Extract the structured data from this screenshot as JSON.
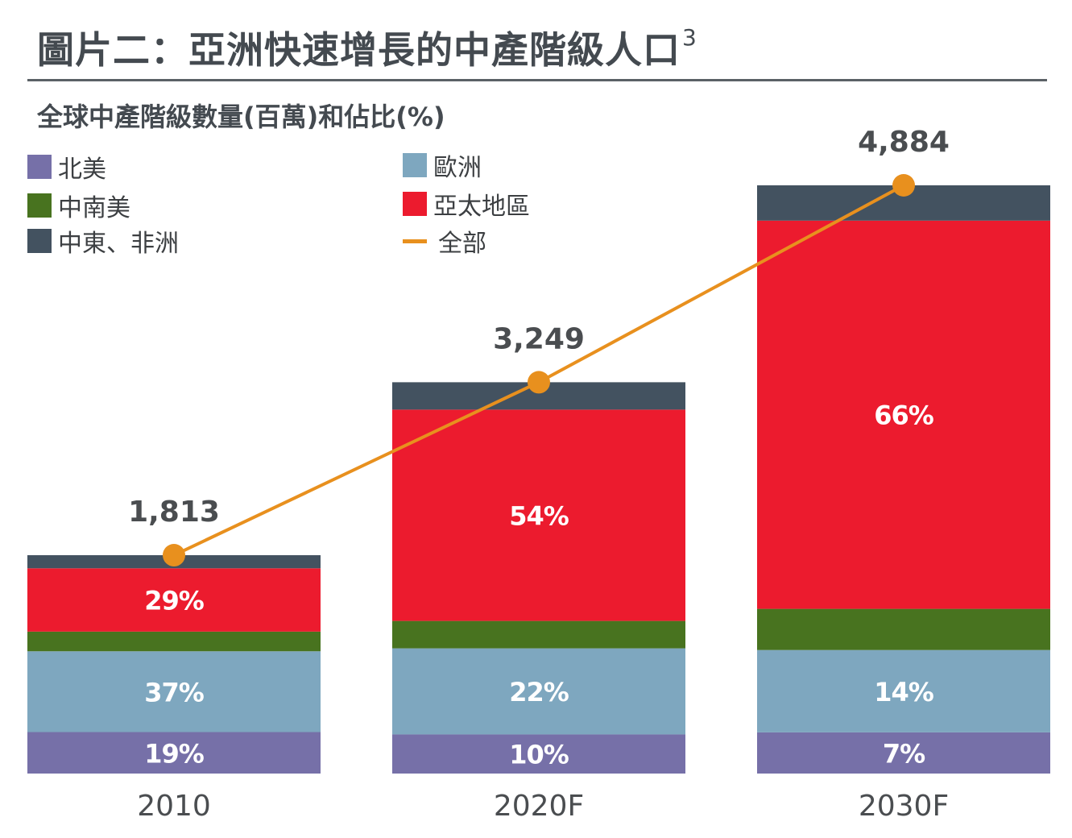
{
  "title": "圖片二：亞洲快速增長的中產階級人口",
  "title_superscript": "3",
  "subtitle": "全球中產階級數量(百萬)和佔比(%)",
  "legend": [
    {
      "label": "北美",
      "color": "#7670a8",
      "kind": "box"
    },
    {
      "label": "歐洲",
      "color": "#7ea7bf",
      "kind": "box"
    },
    {
      "label": "中南美",
      "color": "#48731f",
      "kind": "box"
    },
    {
      "label": "亞太地區",
      "color": "#ec1b2e",
      "kind": "box"
    },
    {
      "label": "中東、非洲",
      "color": "#435260",
      "kind": "box"
    },
    {
      "label": "全部",
      "color": "#e8901e",
      "kind": "line"
    }
  ],
  "chart_data": {
    "type": "bar",
    "stacked": true,
    "title": "全球中產階級數量(百萬)和佔比(%)",
    "categories": [
      "2010",
      "2020F",
      "2030F"
    ],
    "ylim": [
      0,
      4884
    ],
    "series": [
      {
        "name": "北美",
        "color": "#7670a8",
        "values": [
          19,
          10,
          7
        ],
        "labels": [
          "19%",
          "10%",
          "7%"
        ]
      },
      {
        "name": "歐洲",
        "color": "#7ea7bf",
        "values": [
          37,
          22,
          14
        ],
        "labels": [
          "37%",
          "22%",
          "14%"
        ]
      },
      {
        "name": "中南美",
        "color": "#48731f",
        "values": [
          9,
          7,
          7
        ],
        "labels": [
          "",
          "",
          ""
        ]
      },
      {
        "name": "亞太地區",
        "color": "#ec1b2e",
        "values": [
          29,
          54,
          66
        ],
        "labels": [
          "29%",
          "54%",
          "66%"
        ]
      },
      {
        "name": "中東、非洲",
        "color": "#435260",
        "values": [
          6,
          7,
          6
        ],
        "labels": [
          "",
          "",
          ""
        ]
      }
    ],
    "totals": {
      "name": "全部",
      "type": "line",
      "color": "#e8901e",
      "values": [
        1813,
        3249,
        4884
      ],
      "labels": [
        "1,813",
        "3,249",
        "4,884"
      ]
    }
  }
}
